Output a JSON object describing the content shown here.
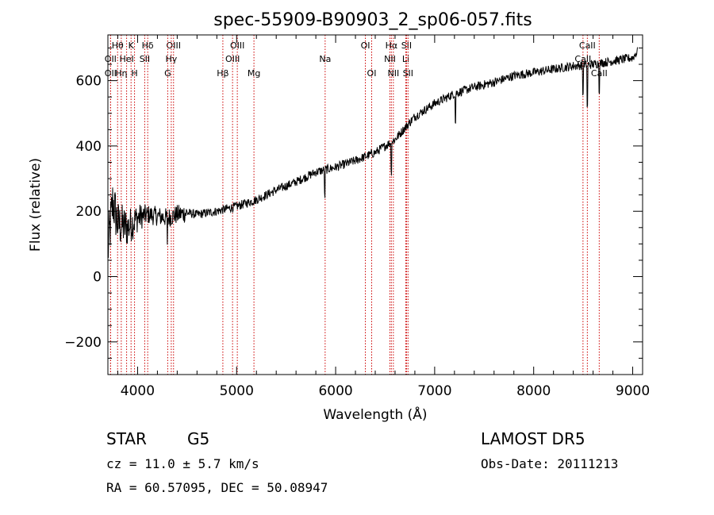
{
  "chart_data": {
    "type": "line",
    "title": "spec-55909-B90903_2_sp06-057.fits",
    "xlabel": "Wavelength (Å)",
    "ylabel": "Flux (relative)",
    "xlim": [
      3700,
      9100
    ],
    "ylim": [
      -300,
      740
    ],
    "xticks": [
      4000,
      5000,
      6000,
      7000,
      8000,
      9000
    ],
    "yticks": [
      -200,
      0,
      200,
      400,
      600
    ],
    "grid": false,
    "line_color": "#000000",
    "marker_color": "#cc0000",
    "spectrum_anchors": [
      [
        3700,
        80
      ],
      [
        3750,
        230
      ],
      [
        3800,
        160
      ],
      [
        3900,
        150
      ],
      [
        4000,
        180
      ],
      [
        4100,
        190
      ],
      [
        4200,
        185
      ],
      [
        4300,
        180
      ],
      [
        4400,
        190
      ],
      [
        4500,
        195
      ],
      [
        4600,
        190
      ],
      [
        4700,
        195
      ],
      [
        4800,
        200
      ],
      [
        5000,
        215
      ],
      [
        5200,
        235
      ],
      [
        5400,
        265
      ],
      [
        5600,
        290
      ],
      [
        5800,
        320
      ],
      [
        6000,
        335
      ],
      [
        6200,
        355
      ],
      [
        6400,
        380
      ],
      [
        6600,
        420
      ],
      [
        6800,
        490
      ],
      [
        7000,
        530
      ],
      [
        7200,
        560
      ],
      [
        7400,
        580
      ],
      [
        7600,
        595
      ],
      [
        7800,
        615
      ],
      [
        8000,
        625
      ],
      [
        8200,
        635
      ],
      [
        8400,
        645
      ],
      [
        8600,
        650
      ],
      [
        8800,
        660
      ],
      [
        9000,
        670
      ],
      [
        9050,
        690
      ]
    ],
    "absorption_dips": [
      {
        "x": 4300,
        "depth": 100
      },
      {
        "x": 5890,
        "depth": 80
      },
      {
        "x": 6563,
        "depth": 90
      },
      {
        "x": 7210,
        "depth": 90
      },
      {
        "x": 8498,
        "depth": 90
      },
      {
        "x": 8542,
        "depth": 130
      },
      {
        "x": 8662,
        "depth": 80
      }
    ],
    "line_markers": [
      {
        "label": "Hθ",
        "x": 3798,
        "row": 1
      },
      {
        "label": "OII",
        "x": 3727,
        "row": 2
      },
      {
        "label": "OII",
        "x": 3727,
        "row": 3
      },
      {
        "label": "K",
        "x": 3934,
        "row": 1
      },
      {
        "label": "HeI",
        "x": 3889,
        "row": 2
      },
      {
        "label": "Hη",
        "x": 3835,
        "row": 3
      },
      {
        "label": "H",
        "x": 3969,
        "row": 3
      },
      {
        "label": "Hδ",
        "x": 4102,
        "row": 1
      },
      {
        "label": "SII",
        "x": 4072,
        "row": 2
      },
      {
        "label": "OIII",
        "x": 4363,
        "row": 1
      },
      {
        "label": "Hγ",
        "x": 4340,
        "row": 2
      },
      {
        "label": "G",
        "x": 4304,
        "row": 3
      },
      {
        "label": "OIII",
        "x": 5007,
        "row": 1
      },
      {
        "label": "OIII",
        "x": 4959,
        "row": 2
      },
      {
        "label": "Hβ",
        "x": 4861,
        "row": 3
      },
      {
        "label": "Mg",
        "x": 5175,
        "row": 3
      },
      {
        "label": "Na",
        "x": 5894,
        "row": 2
      },
      {
        "label": "OI",
        "x": 6300,
        "row": 1
      },
      {
        "label": "OI",
        "x": 6364,
        "row": 3
      },
      {
        "label": "Hα",
        "x": 6563,
        "row": 1
      },
      {
        "label": "NII",
        "x": 6548,
        "row": 2
      },
      {
        "label": "NII",
        "x": 6583,
        "row": 3
      },
      {
        "label": "SII",
        "x": 6716,
        "row": 1
      },
      {
        "label": "Li",
        "x": 6708,
        "row": 2
      },
      {
        "label": "SII",
        "x": 6731,
        "row": 3
      },
      {
        "label": "CaII",
        "x": 8542,
        "row": 1
      },
      {
        "label": "CaII",
        "x": 8498,
        "row": 2
      },
      {
        "label": "CaII",
        "x": 8662,
        "row": 3
      }
    ]
  },
  "info": {
    "object_class": "STAR",
    "subclass": "G5",
    "survey": "LAMOST DR5",
    "redshift_line": "cz = 11.0 ± 5.7 km/s",
    "obs_date": "Obs-Date: 20111213",
    "coords": "RA =  60.57095, DEC =  50.08947"
  }
}
